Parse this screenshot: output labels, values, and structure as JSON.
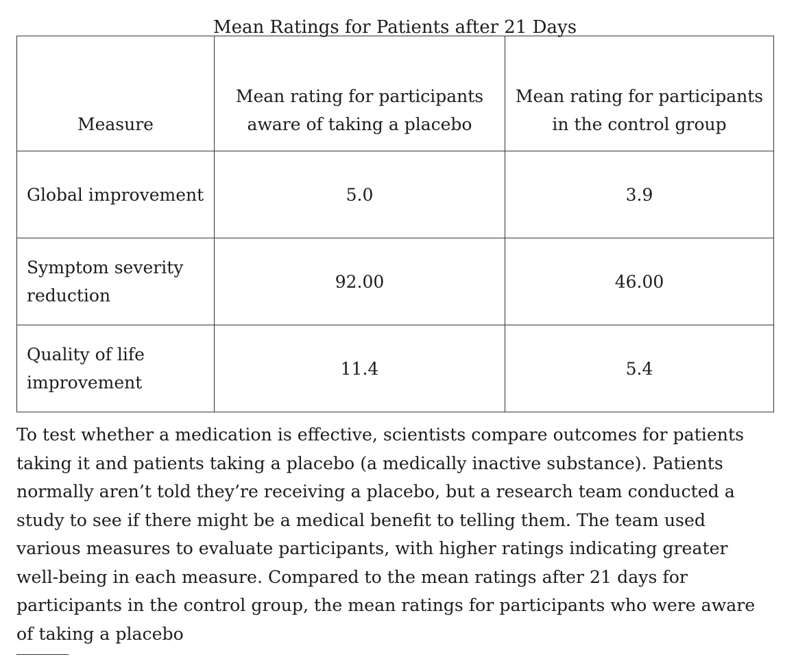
{
  "table": {
    "caption": "Mean Ratings for Patients after 21 Days",
    "headers": [
      "Measure",
      "Mean rating for participants aware of taking a placebo",
      "Mean rating for participants in the control group"
    ],
    "rows": [
      {
        "measure": "Global improvement",
        "aware": "5.0",
        "control": "3.9"
      },
      {
        "measure": "Symptom severity reduction",
        "aware": "92.00",
        "control": "46.00"
      },
      {
        "measure": "Quality of life improvement",
        "aware": "11.4",
        "control": "5.4"
      }
    ]
  },
  "passage": {
    "text": "To test whether a medication is effective, scientists compare outcomes for patients taking it and patients taking a placebo (a medically inactive substance). Patients normally aren’t told they’re receiving a placebo, but a research team conducted a study to see if there might be a medical benefit to telling them. The team used various measures to evaluate participants, with higher ratings indicating greater well-being in each measure. Compared to the mean ratings after 21 days for participants in the control group, the mean ratings for participants who were aware of taking a placebo"
  }
}
